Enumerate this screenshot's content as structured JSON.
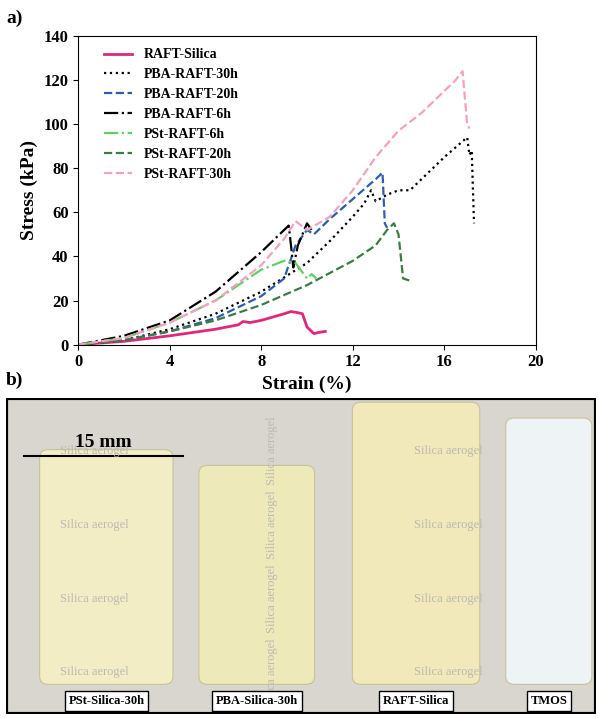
{
  "chart_data": {
    "type": "line",
    "title": "a)",
    "x_label": "Strain (%)",
    "y_label": "Stress (kPa)",
    "xlim": [
      0,
      20
    ],
    "xticks": [
      0,
      4,
      8,
      12,
      16,
      20
    ],
    "ylim": [
      0,
      140
    ],
    "yticks": [
      0,
      20,
      40,
      60,
      80,
      100,
      120,
      140
    ],
    "grid": false,
    "legend": "upper left",
    "series": [
      {
        "name": "RAFT-Silica",
        "color": "#e0287a",
        "line_style": "solid",
        "x": [
          0,
          2,
          4,
          6,
          7,
          7.2,
          7.5,
          8,
          8.5,
          9,
          9.3,
          9.6,
          9.8,
          10,
          10.3,
          10.5,
          10.8
        ],
        "values": [
          0,
          1.5,
          4,
          7,
          9,
          10.5,
          10,
          11,
          12.5,
          14,
          15,
          14.5,
          14,
          8,
          5,
          5.5,
          6
        ]
      },
      {
        "name": "PBA-RAFT-30h",
        "color": "#000000",
        "line_style": "dotted",
        "x": [
          0,
          2,
          4,
          6,
          8,
          10,
          11,
          12,
          12.5,
          12.8,
          13,
          13.5,
          14,
          14.5,
          15,
          16,
          17,
          17.1,
          17.2,
          17.3
        ],
        "values": [
          0,
          2,
          7,
          14,
          24,
          37,
          47,
          58,
          64,
          70,
          65,
          68,
          70,
          70,
          75,
          85,
          94,
          86,
          88,
          55
        ]
      },
      {
        "name": "PBA-RAFT-20h",
        "color": "#2b5fae",
        "line_style": "dashed",
        "x": [
          0,
          2,
          4,
          6,
          8,
          9,
          9.5,
          10,
          10.3,
          11,
          12,
          13,
          13.3,
          13.4,
          13.5
        ],
        "values": [
          0,
          2,
          6,
          12,
          22,
          30,
          45,
          52,
          50,
          57,
          66,
          75,
          78,
          55,
          53
        ]
      },
      {
        "name": "PBA-RAFT-6h",
        "color": "#000000",
        "line_style": "dashdot",
        "x": [
          0,
          2,
          4,
          6,
          8,
          9,
          9.2,
          9.3,
          9.4,
          9.6,
          10,
          10.2
        ],
        "values": [
          0,
          4,
          11,
          24,
          42,
          52,
          54,
          45,
          35,
          45,
          55,
          52
        ]
      },
      {
        "name": "PSt-RAFT-6h",
        "color": "#66cc66",
        "line_style": "dashdot",
        "x": [
          0,
          2,
          4,
          6,
          8,
          9,
          9.5,
          10,
          10.2,
          10.4
        ],
        "values": [
          0,
          3,
          10,
          20,
          34,
          38,
          37,
          30,
          32,
          30
        ]
      },
      {
        "name": "PSt-RAFT-20h",
        "color": "#3a7d44",
        "line_style": "dashed",
        "x": [
          0,
          2,
          4,
          6,
          8,
          10,
          12,
          13,
          13.5,
          13.8,
          14,
          14.2,
          14.5
        ],
        "values": [
          0,
          2,
          6,
          11,
          18,
          27,
          38,
          45,
          52,
          55,
          50,
          30,
          29
        ]
      },
      {
        "name": "PSt-RAFT-30h",
        "color": "#f4a0c0",
        "line_style": "dashed",
        "x": [
          0,
          2,
          4,
          6,
          8,
          9,
          9.5,
          10,
          11,
          12,
          13,
          14,
          15,
          16,
          16.5,
          16.8,
          17,
          17.1
        ],
        "values": [
          0,
          3,
          10,
          20,
          36,
          48,
          56,
          52,
          58,
          70,
          85,
          97,
          105,
          115,
          120,
          124,
          100,
          98
        ]
      }
    ]
  },
  "photo": {
    "label": "b)",
    "scale_bar": "15 mm",
    "background_text": "Silica aerogel",
    "samples": [
      "PSt-Silica-30h",
      "PBA-Silica-30h",
      "RAFT-Silica",
      "TMOS"
    ]
  }
}
